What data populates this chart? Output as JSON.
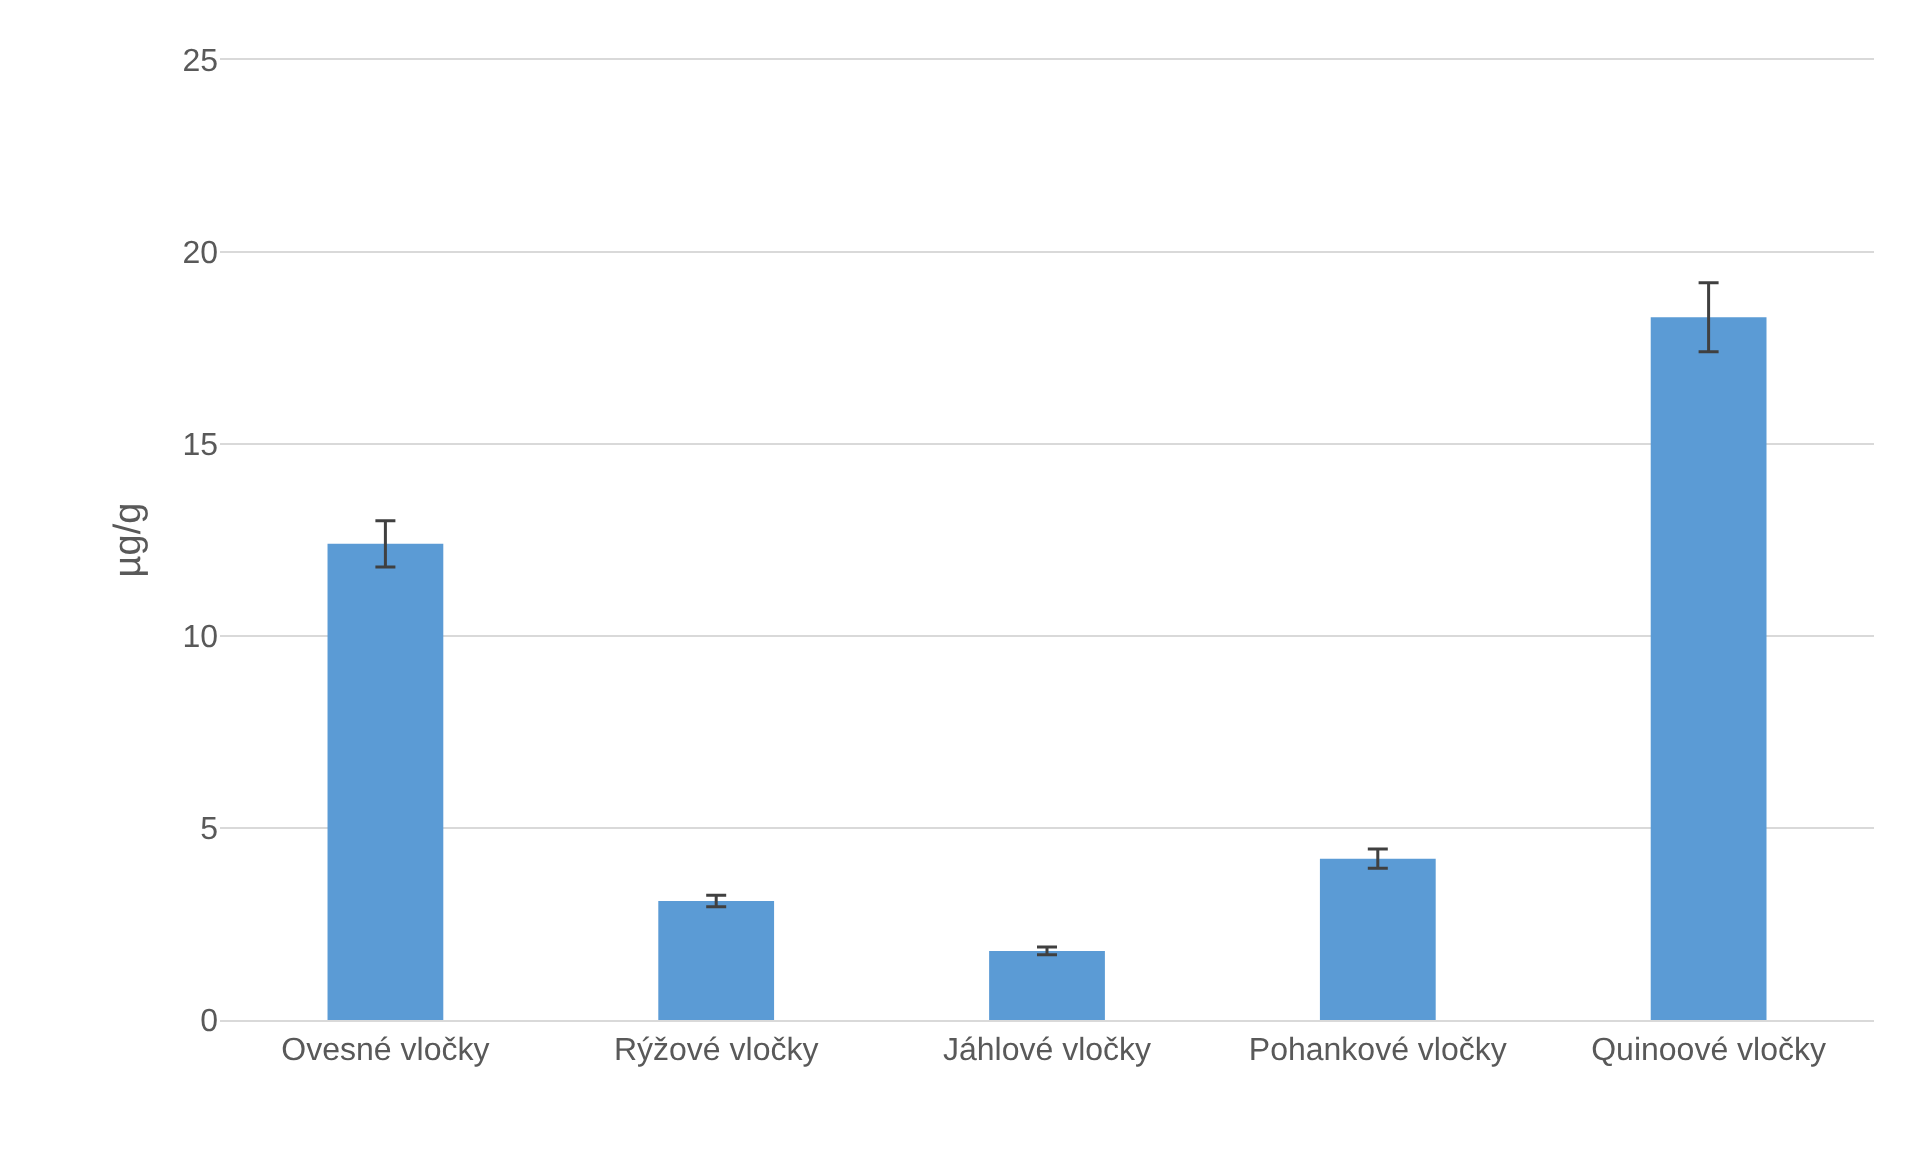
{
  "chart_data": {
    "type": "bar",
    "ylabel": "µg/g",
    "categories": [
      "Ovesné vločky",
      "Rýžové vločky",
      "Jáhlové vločky",
      "Pohankové vločky",
      "Quinoové vločky"
    ],
    "values": [
      12.4,
      3.1,
      1.8,
      4.2,
      18.3
    ],
    "errors": [
      0.6,
      0.15,
      0.1,
      0.25,
      0.9
    ],
    "color": "#5b9bd5",
    "ylim": [
      0,
      25
    ],
    "yticks": [
      0,
      5,
      10,
      15,
      20,
      25
    ],
    "grid": "y"
  }
}
